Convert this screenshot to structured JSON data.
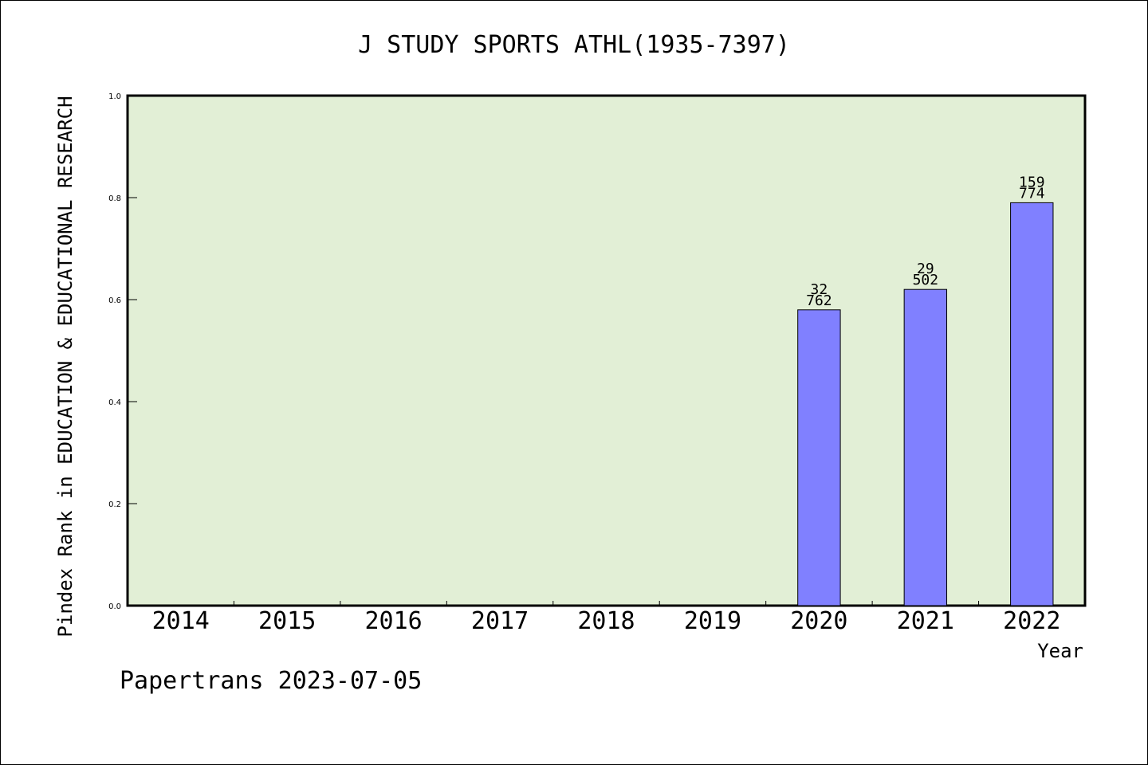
{
  "chart_data": {
    "type": "bar",
    "title": "J STUDY SPORTS ATHL(1935-7397)",
    "xlabel": "Year",
    "ylabel": "Pindex Rank in EDUCATION & EDUCATIONAL RESEARCH",
    "categories": [
      "2014",
      "2015",
      "2016",
      "2017",
      "2018",
      "2019",
      "2020",
      "2021",
      "2022"
    ],
    "values": [
      null,
      null,
      null,
      null,
      null,
      null,
      0.58,
      0.62,
      0.79
    ],
    "bar_labels": [
      null,
      null,
      null,
      null,
      null,
      null,
      {
        "top": "32",
        "bottom": "762"
      },
      {
        "top": "29",
        "bottom": "502"
      },
      {
        "top": "159",
        "bottom": "774"
      }
    ],
    "ylim": [
      0,
      1.0
    ],
    "yticks": [
      "0.0",
      "0.2",
      "0.4",
      "0.6",
      "0.8",
      "1.0"
    ],
    "grid": false,
    "colors": {
      "plot_background": "#e2efd6",
      "bar_fill": "#8080ff",
      "bar_edge": "#000000"
    }
  },
  "footer": "Papertrans 2023-07-05"
}
